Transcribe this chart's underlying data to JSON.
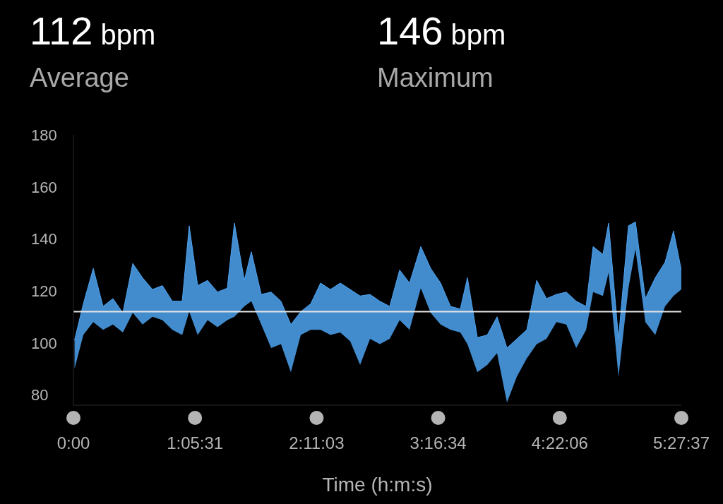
{
  "chart_data": {
    "type": "line",
    "xlabel": "Time (h:m:s)",
    "annotations": [
      "112 bpm",
      "Average",
      "146 bpm",
      "Maximum"
    ],
    "x": [
      0.01,
      0.089,
      0.178,
      0.266,
      0.355,
      0.444,
      0.533,
      0.621,
      0.71,
      0.799,
      0.888,
      0.977,
      1.04,
      1.116,
      1.205,
      1.294,
      1.382,
      1.446,
      1.535,
      1.598,
      1.687,
      1.776,
      1.864,
      1.953,
      2.042,
      2.131,
      2.22,
      2.308,
      2.397,
      2.486,
      2.575,
      2.664,
      2.752,
      2.841,
      2.93,
      3.019,
      3.12,
      3.209,
      3.298,
      3.387,
      3.475,
      3.539,
      3.628,
      3.717,
      3.805,
      3.894,
      3.983,
      4.072,
      4.161,
      4.249,
      4.338,
      4.427,
      4.516,
      4.605,
      4.668,
      4.756,
      4.807,
      4.896,
      4.985,
      5.048,
      5.137,
      5.226,
      5.314,
      5.39,
      5.46
    ],
    "series": [
      {
        "color": "#4ea4f2",
        "values": [
          101,
          115,
          128.6,
          114,
          117,
          111.5,
          130.5,
          125,
          120.5,
          122,
          116,
          116,
          145,
          122,
          124,
          119.5,
          121,
          146,
          124,
          135,
          118.6,
          119.5,
          116,
          107,
          112,
          115,
          123,
          120.5,
          123,
          120.5,
          118,
          118.6,
          116,
          114,
          128,
          123,
          137,
          128.6,
          123,
          114,
          113,
          125,
          102,
          103,
          110,
          98,
          101.5,
          105,
          124,
          117,
          118.6,
          119.5,
          116,
          114,
          137,
          134,
          146,
          101.5,
          145,
          146.5,
          117,
          125,
          131,
          143,
          128
        ],
        "upper": [
          101,
          115,
          128.6,
          114,
          117,
          111.5,
          130.5,
          125,
          120.5,
          122,
          116,
          116,
          145,
          122,
          124,
          119.5,
          121,
          146,
          124,
          135,
          118.6,
          119.5,
          116,
          107,
          112,
          115,
          123,
          120.5,
          123,
          120.5,
          118,
          118.6,
          116,
          114,
          128,
          123,
          137,
          128.6,
          123,
          114,
          113,
          125,
          102,
          103,
          110,
          98,
          101.5,
          105,
          124,
          117,
          118.6,
          119.5,
          116,
          114,
          137,
          134,
          146,
          101.5,
          145,
          146.5,
          117,
          125,
          131,
          143,
          128
        ],
        "lower": [
          90,
          103,
          108,
          105,
          107,
          104,
          111.5,
          107,
          110,
          108.7,
          105,
          103,
          112,
          103,
          108.7,
          106,
          108.7,
          110,
          114,
          116,
          107,
          98,
          99.5,
          88.7,
          103,
          105,
          105,
          103,
          104,
          100.6,
          91.5,
          101.5,
          99.5,
          101.5,
          108.7,
          105,
          121,
          111.5,
          107,
          105,
          104,
          99.5,
          88.7,
          91.5,
          96,
          77,
          87,
          94,
          99.5,
          101.5,
          108,
          107,
          98,
          105,
          119.5,
          118,
          127,
          87,
          121,
          136,
          108,
          103,
          114,
          118,
          120.5
        ]
      }
    ],
    "ylim": [
      76,
      180
    ],
    "yticks": [
      80,
      100,
      120,
      140,
      160,
      180
    ],
    "xlim": [
      0,
      5.46028
    ],
    "xticks": [
      {
        "value": 0,
        "label": "0:00"
      },
      {
        "value": 1.09194,
        "label": "1:05:31"
      },
      {
        "value": 2.18417,
        "label": "2:11:03"
      },
      {
        "value": 3.27611,
        "label": "3:16:34"
      },
      {
        "value": 4.36833,
        "label": "4:22:06"
      },
      {
        "value": 5.46028,
        "label": "5:27:37"
      }
    ],
    "ref_lines": [
      {
        "axis": "y",
        "value": 112,
        "color": "#e6e6e6"
      }
    ],
    "grid": false,
    "legend": false
  }
}
